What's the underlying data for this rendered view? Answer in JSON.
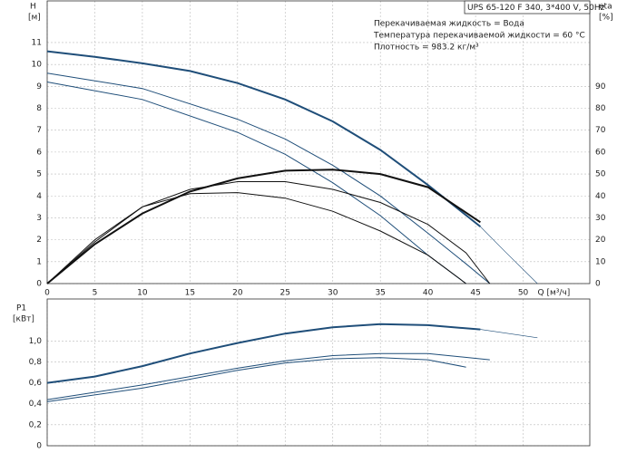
{
  "chart_data": [
    {
      "type": "line",
      "title": "UPS 65-120 F 340, 3*400 V, 50Hz",
      "annotations": [
        "Перекачиваемая жидкость = Вода",
        "Температура перекачиваемой жидкости = 60 °C",
        "Плотность = 983.2 кг/м³"
      ],
      "ylabel": "H",
      "yunit": "[м]",
      "y2label": "eta",
      "y2unit": "[%]",
      "xlabel": "Q [м³/ч]",
      "xlim": [
        0,
        57
      ],
      "xticks": [
        0,
        5,
        10,
        15,
        20,
        25,
        30,
        35,
        40,
        45,
        50
      ],
      "ylim": [
        0,
        12.9
      ],
      "yticks": [
        0,
        1,
        2,
        3,
        4,
        5,
        6,
        7,
        8,
        9,
        10,
        11
      ],
      "y2lim": [
        0,
        129
      ],
      "y2ticks": [
        0,
        10,
        20,
        30,
        40,
        50,
        60,
        70,
        80,
        90
      ],
      "grid": true,
      "series": [
        {
          "color": "#1f4e79",
          "line_width": 2,
          "x": [
            0,
            5,
            10,
            15,
            20,
            25,
            30,
            35,
            40,
            45.5
          ],
          "values": [
            10.6,
            10.35,
            10.05,
            9.7,
            9.15,
            8.4,
            7.4,
            6.1,
            4.5,
            2.6
          ]
        },
        {
          "color": "#1f4e79",
          "line_width": 0.6,
          "x": [
            45.5,
            48,
            51.5
          ],
          "values": [
            2.6,
            1.5,
            0
          ]
        },
        {
          "color": "#1f4e79",
          "line_width": 1,
          "x": [
            0,
            10,
            20,
            25,
            30,
            35,
            40,
            44,
            46.5
          ],
          "values": [
            9.6,
            8.9,
            7.5,
            6.6,
            5.4,
            4.0,
            2.3,
            0.9,
            0
          ]
        },
        {
          "color": "#1f4e79",
          "line_width": 1,
          "x": [
            0,
            10,
            20,
            25,
            30,
            35,
            40,
            44
          ],
          "values": [
            9.2,
            8.4,
            6.9,
            5.9,
            4.6,
            3.1,
            1.3,
            0
          ]
        },
        {
          "color": "#111111",
          "line_width": 2,
          "axis": "y2",
          "x": [
            0,
            5,
            10,
            15,
            20,
            25,
            30,
            35,
            40,
            45.5
          ],
          "values": [
            0,
            18,
            32,
            42,
            48,
            51.5,
            52,
            50,
            44,
            28
          ]
        },
        {
          "color": "#111111",
          "line_width": 1,
          "axis": "y2",
          "x": [
            0,
            5,
            10,
            15,
            20,
            25,
            30,
            35,
            40,
            44,
            46.5
          ],
          "values": [
            0,
            19,
            35,
            43,
            46.5,
            46.5,
            43,
            37,
            27,
            14,
            0
          ]
        },
        {
          "color": "#111111",
          "line_width": 1,
          "axis": "y2",
          "x": [
            0,
            5,
            10,
            15,
            20,
            25,
            30,
            35,
            40,
            44
          ],
          "values": [
            0,
            20,
            35,
            41,
            41.5,
            39,
            33,
            24,
            13,
            0
          ]
        }
      ]
    },
    {
      "type": "line",
      "ylabel": "P1",
      "yunit": "[кВт]",
      "xlim": [
        0,
        57
      ],
      "xticks": [
        0,
        5,
        10,
        15,
        20,
        25,
        30,
        35,
        40,
        45,
        50
      ],
      "ylim": [
        0,
        1.4
      ],
      "yticks": [
        0,
        {
          "value": 0.2,
          "label": "0,2"
        },
        {
          "value": 0.4,
          "label": "0,4"
        },
        {
          "value": 0.6,
          "label": "0,6"
        },
        {
          "value": 0.8,
          "label": "0,8"
        },
        {
          "value": 1.0,
          "label": "1,0"
        }
      ],
      "grid": true,
      "series": [
        {
          "color": "#1f4e79",
          "line_width": 2,
          "x": [
            0,
            5,
            10,
            15,
            20,
            25,
            30,
            35,
            40,
            45.5
          ],
          "values": [
            0.6,
            0.66,
            0.76,
            0.88,
            0.98,
            1.07,
            1.13,
            1.16,
            1.15,
            1.11
          ]
        },
        {
          "color": "#1f4e79",
          "line_width": 0.6,
          "x": [
            45.5,
            51.5
          ],
          "values": [
            1.11,
            1.03
          ]
        },
        {
          "color": "#1f4e79",
          "line_width": 1,
          "x": [
            0,
            10,
            20,
            25,
            30,
            35,
            40,
            46.5
          ],
          "values": [
            0.44,
            0.58,
            0.74,
            0.81,
            0.86,
            0.88,
            0.88,
            0.82
          ]
        },
        {
          "color": "#1f4e79",
          "line_width": 1,
          "x": [
            0,
            10,
            20,
            25,
            30,
            35,
            40,
            44
          ],
          "values": [
            0.42,
            0.55,
            0.72,
            0.79,
            0.83,
            0.84,
            0.82,
            0.75
          ]
        }
      ]
    }
  ]
}
